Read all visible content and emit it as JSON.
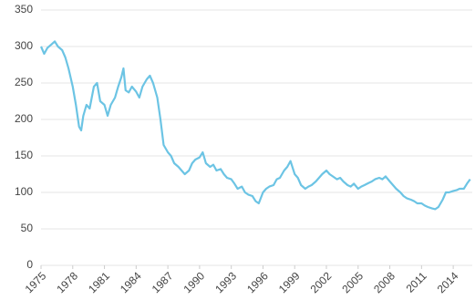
{
  "chart_data": {
    "type": "line",
    "color": "#6cc4e4",
    "grid": true,
    "x": [
      1975.0,
      1975.3,
      1975.6,
      1976.0,
      1976.3,
      1976.6,
      1977.0,
      1977.3,
      1977.6,
      1978.0,
      1978.3,
      1978.6,
      1978.8,
      1979.0,
      1979.3,
      1979.6,
      1980.0,
      1980.3,
      1980.6,
      1981.0,
      1981.3,
      1981.6,
      1982.0,
      1982.3,
      1982.6,
      1982.8,
      1983.0,
      1983.3,
      1983.6,
      1984.0,
      1984.3,
      1984.6,
      1985.0,
      1985.3,
      1985.6,
      1986.0,
      1986.3,
      1986.6,
      1987.0,
      1987.3,
      1987.6,
      1988.0,
      1988.3,
      1988.6,
      1989.0,
      1989.3,
      1989.6,
      1990.0,
      1990.3,
      1990.6,
      1991.0,
      1991.3,
      1991.6,
      1992.0,
      1992.3,
      1992.6,
      1993.0,
      1993.3,
      1993.6,
      1994.0,
      1994.3,
      1994.6,
      1995.0,
      1995.3,
      1995.6,
      1996.0,
      1996.3,
      1996.6,
      1997.0,
      1997.3,
      1997.6,
      1998.0,
      1998.3,
      1998.6,
      1999.0,
      1999.3,
      1999.6,
      2000.0,
      2000.3,
      2000.6,
      2001.0,
      2001.3,
      2001.6,
      2002.0,
      2002.3,
      2002.6,
      2003.0,
      2003.3,
      2003.6,
      2004.0,
      2004.3,
      2004.6,
      2005.0,
      2005.3,
      2005.6,
      2006.0,
      2006.3,
      2006.6,
      2007.0,
      2007.3,
      2007.6,
      2008.0,
      2008.3,
      2008.6,
      2009.0,
      2009.3,
      2009.6,
      2010.0,
      2010.3,
      2010.6,
      2011.0,
      2011.3,
      2011.6,
      2012.0,
      2012.3,
      2012.6,
      2013.0,
      2013.3,
      2013.6,
      2014.0,
      2014.3,
      2014.6,
      2015.0,
      2015.3,
      2015.6
    ],
    "values": [
      300,
      290,
      298,
      303,
      307,
      300,
      295,
      285,
      270,
      245,
      220,
      190,
      185,
      205,
      220,
      215,
      245,
      250,
      225,
      220,
      205,
      220,
      230,
      245,
      258,
      270,
      240,
      237,
      245,
      238,
      230,
      245,
      255,
      260,
      250,
      230,
      200,
      165,
      155,
      150,
      140,
      135,
      130,
      125,
      130,
      140,
      145,
      148,
      155,
      140,
      135,
      138,
      130,
      132,
      125,
      120,
      118,
      112,
      105,
      108,
      100,
      97,
      95,
      88,
      85,
      100,
      105,
      108,
      110,
      118,
      120,
      130,
      135,
      143,
      125,
      120,
      110,
      105,
      108,
      110,
      115,
      120,
      125,
      130,
      125,
      122,
      118,
      120,
      115,
      110,
      108,
      112,
      105,
      108,
      110,
      113,
      115,
      118,
      120,
      118,
      122,
      115,
      110,
      105,
      100,
      95,
      92,
      90,
      88,
      85,
      85,
      82,
      80,
      78,
      77,
      80,
      90,
      100,
      100,
      102,
      103,
      105,
      105,
      112,
      118
    ],
    "xlim": [
      1975,
      2015.8
    ],
    "xticks": [
      1975,
      1978,
      1981,
      1984,
      1987,
      1990,
      1993,
      1996,
      1999,
      2002,
      2005,
      2008,
      2011,
      2014
    ],
    "ylim": [
      0,
      350
    ],
    "yticks": [
      0,
      50,
      100,
      150,
      200,
      250,
      300,
      350
    ]
  }
}
